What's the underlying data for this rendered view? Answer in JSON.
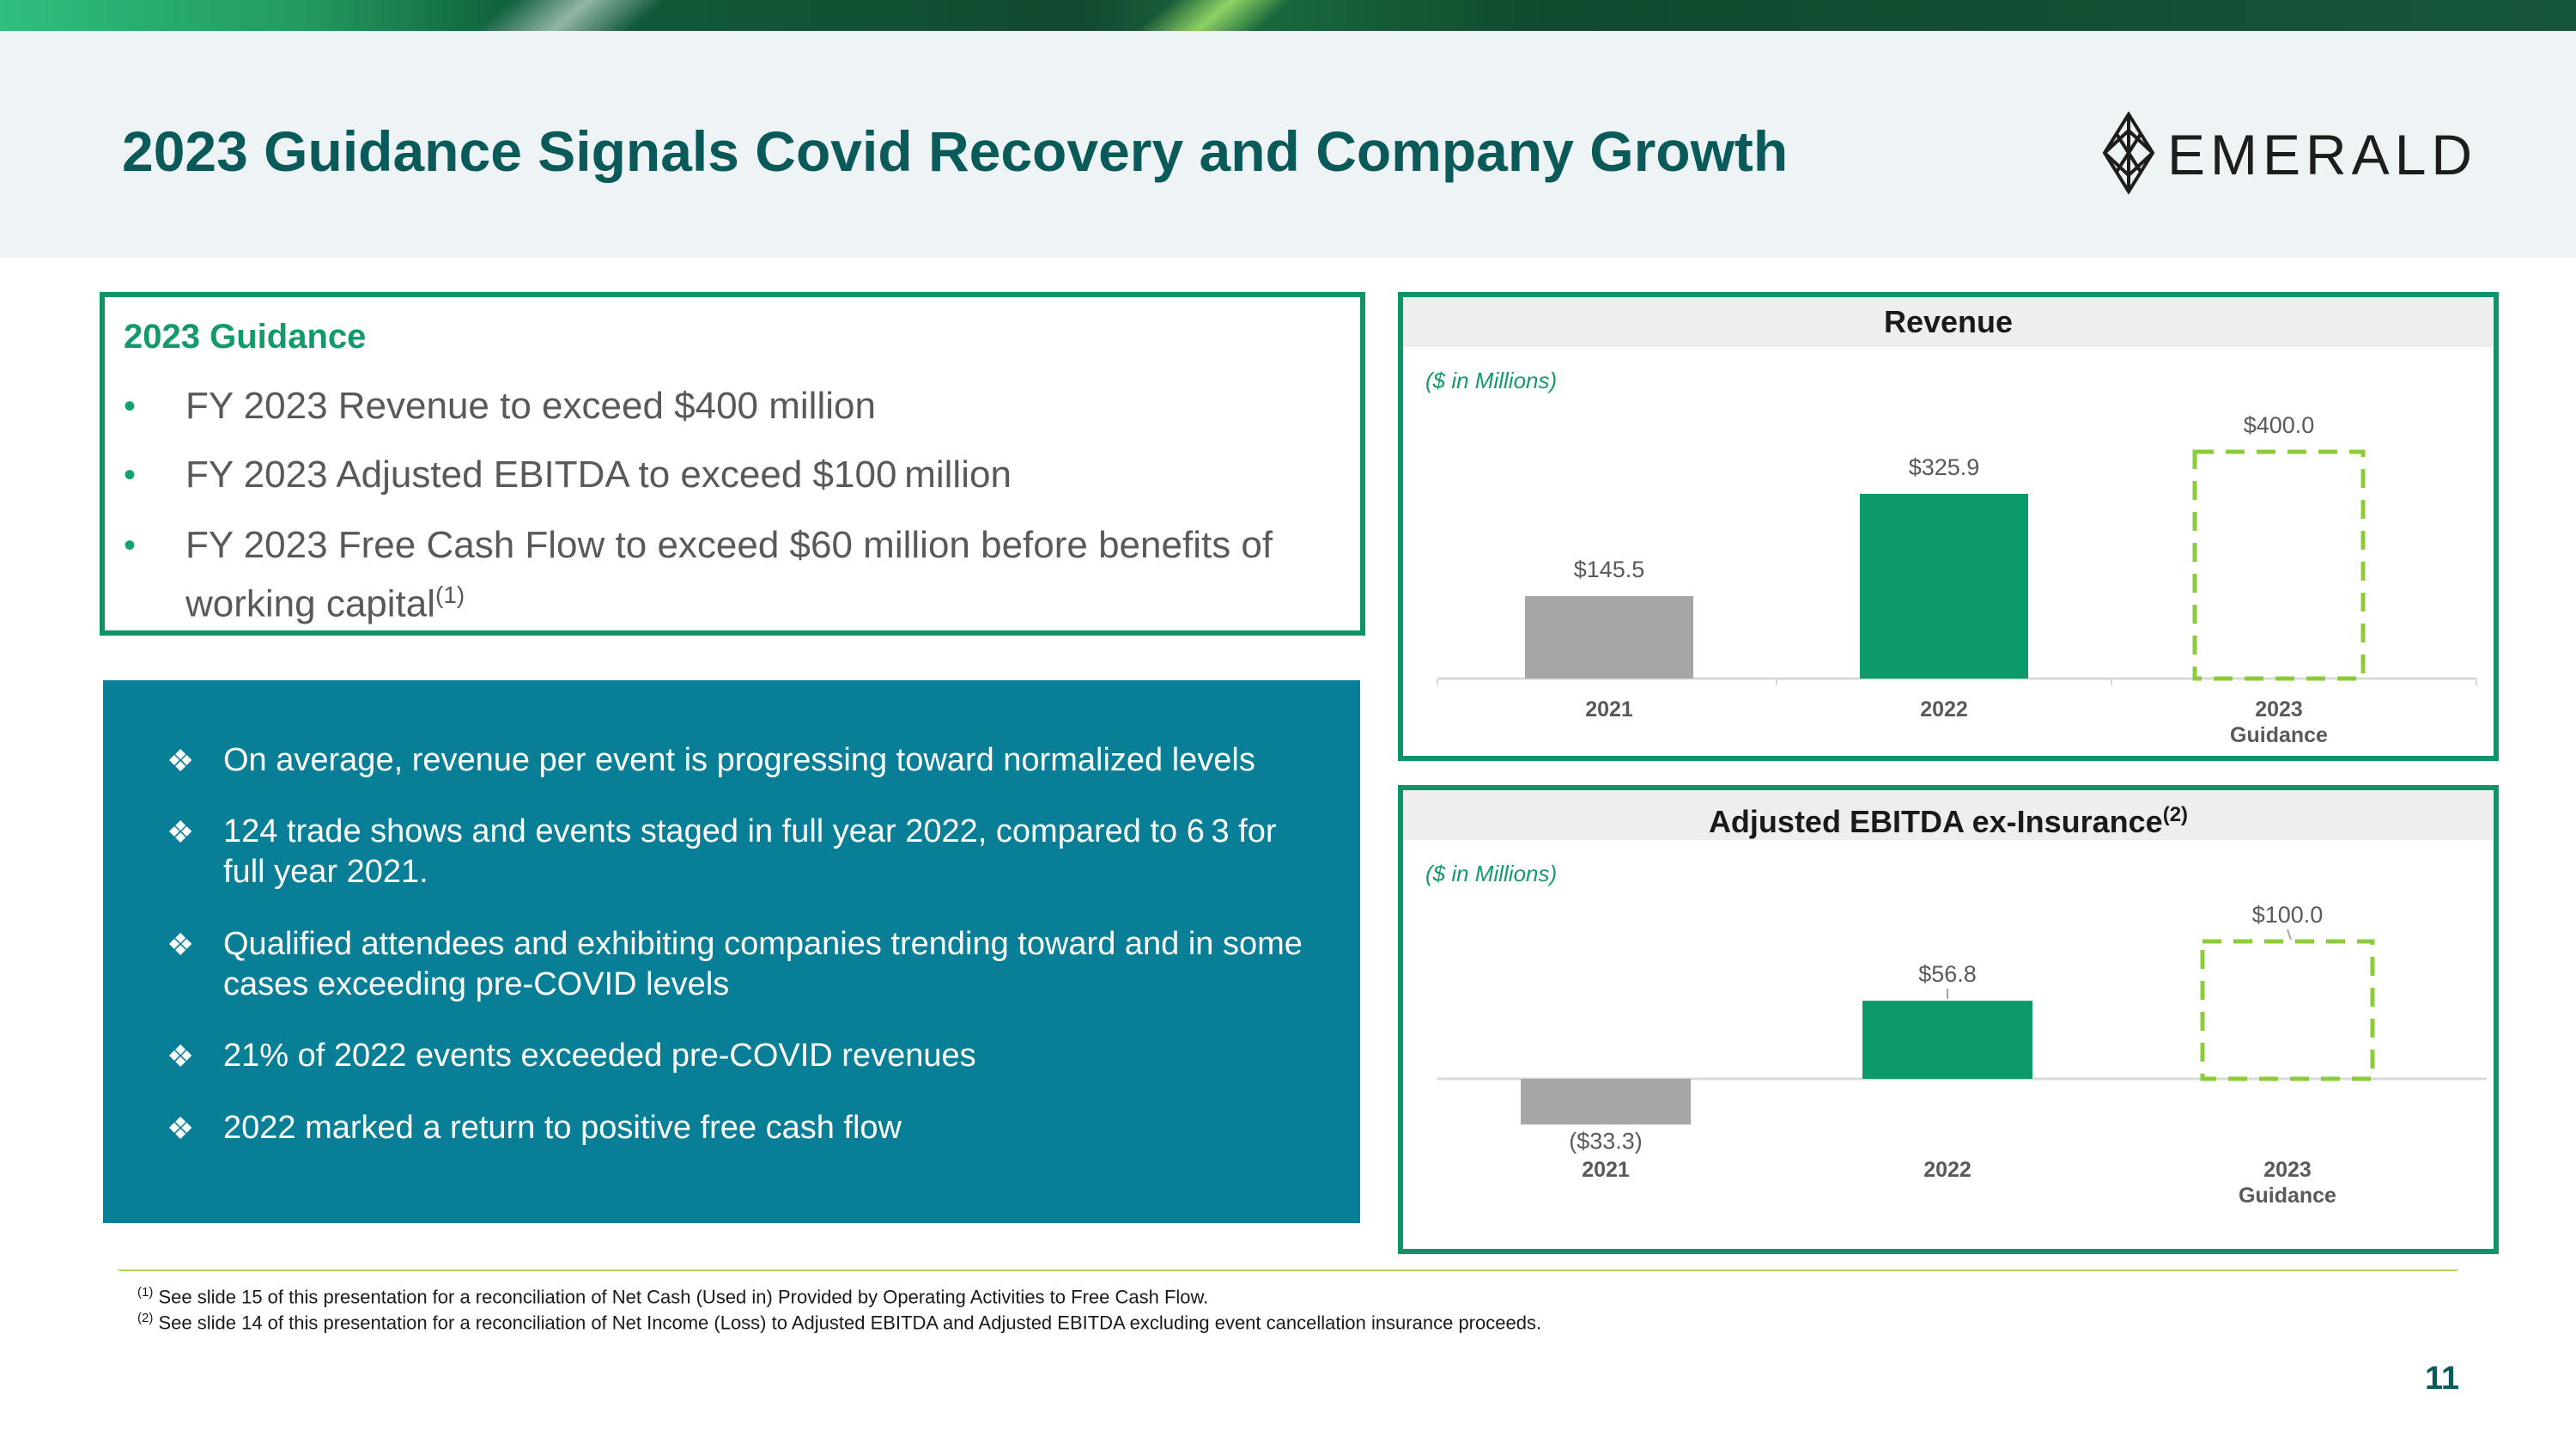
{
  "title": "2023 Guidance Signals Covid Recovery and Company Growth",
  "logo": {
    "text": "EMERALD"
  },
  "colors": {
    "title": "#0b5a5a",
    "accent_green": "#10936a",
    "teal_box": "#087f96",
    "bar_2021": "#a6a6a6",
    "bar_2022": "#0a9a6c",
    "guidance_dash": "#8ccc3a"
  },
  "guidance": {
    "heading": "2023 Guidance",
    "bullets": [
      {
        "text": "FY 2023 Revenue to exceed $400 million",
        "sup": ""
      },
      {
        "text": "FY 2023 Adjusted EBITDA to exceed $100 million",
        "sup": ""
      },
      {
        "text": "FY 2023 Free Cash Flow to exceed $60 million before benefits of working capital",
        "sup": "(1)"
      }
    ],
    "bullet_glyph": "•"
  },
  "facts": {
    "glyph": "❖",
    "items": [
      "On average, revenue per event is progressing toward normalized levels",
      "124 trade shows and events staged in full year 2022, compared to 6 3 for full year 2021.",
      "Qualified attendees and exhibiting companies trending toward and in some cases exceeding pre-COVID levels",
      "21% of 2022 events exceeded pre-COVID revenues",
      "2022 marked a return to positive free cash flow"
    ]
  },
  "chart_data": [
    {
      "type": "bar",
      "title": "Revenue",
      "units": "($ in Millions)",
      "categories": [
        "2021",
        "2022",
        "2023 Guidance"
      ],
      "values": [
        145.5,
        325.9,
        400.0
      ],
      "labels": [
        "$145.5",
        "$325.9",
        "$400.0"
      ],
      "styles": [
        "solid-gray",
        "solid-green",
        "dashed-green"
      ],
      "ylim": [
        0,
        400
      ]
    },
    {
      "type": "bar",
      "title": "Adjusted EBITDA ex-Insurance",
      "title_sup": "(2)",
      "units": "($ in Millions)",
      "categories": [
        "2021",
        "2022",
        "2023 Guidance"
      ],
      "values": [
        -33.3,
        56.8,
        100.0
      ],
      "labels": [
        "($33.3)",
        "$56.8",
        "$100.0"
      ],
      "styles": [
        "solid-gray",
        "solid-green",
        "dashed-green"
      ],
      "ylim": [
        -33.3,
        100
      ]
    }
  ],
  "footnotes": [
    {
      "mark": "(1)",
      "text": "See slide 15 of this presentation for a reconciliation of Net Cash (Used in) Provided by Operating Activities to Free Cash Flow."
    },
    {
      "mark": "(2)",
      "text": "See slide 14 of this presentation for a reconciliation of Net Income (Loss) to Adjusted EBITDA and Adjusted EBITDA excluding event cancellation insurance proceeds."
    }
  ],
  "page_number": "11"
}
